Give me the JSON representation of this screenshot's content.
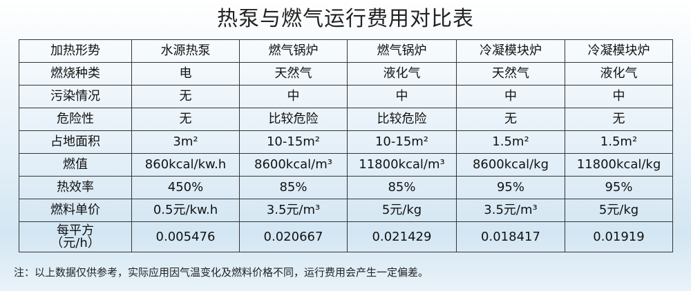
{
  "header": {
    "title": "热泵与燃气运行费用对比表"
  },
  "table": {
    "rows": [
      [
        "加热形势",
        "水源热泵",
        "燃气锅炉",
        "燃气锅炉",
        "冷凝模块炉",
        "冷凝模块炉"
      ],
      [
        "燃烧种类",
        "电",
        "天然气",
        "液化气",
        "天然气",
        "液化气"
      ],
      [
        "污染情况",
        "无",
        "中",
        "中",
        "中",
        "中"
      ],
      [
        "危险性",
        "无",
        "比较危险",
        "比较危险",
        "无",
        "无"
      ],
      [
        "占地面积",
        "3m²",
        "10-15m²",
        "10-15m²",
        "1.5m²",
        "1.5m²"
      ],
      [
        "燃值",
        "860kcal/kw.h",
        "8600kcal/m³",
        "11800kcal/m³",
        "8600kcal/kg",
        "11800kcal/kg"
      ],
      [
        "热效率",
        "450%",
        "85%",
        "85%",
        "95%",
        "95%"
      ],
      [
        "燃料单价",
        "0.5元/kw.h",
        "3.5元/m³",
        "5元/kg",
        "3.5元/m³",
        "5元/kg"
      ],
      [
        "每平方\n（元/h）",
        "0.005476",
        "0.020667",
        "0.021429",
        "0.018417",
        "0.01919"
      ]
    ]
  },
  "footer": {
    "note": "注：以上数据仅供参考，实际应用因气温变化及燃料价格不同，运行费用会产生一定偏差。"
  }
}
